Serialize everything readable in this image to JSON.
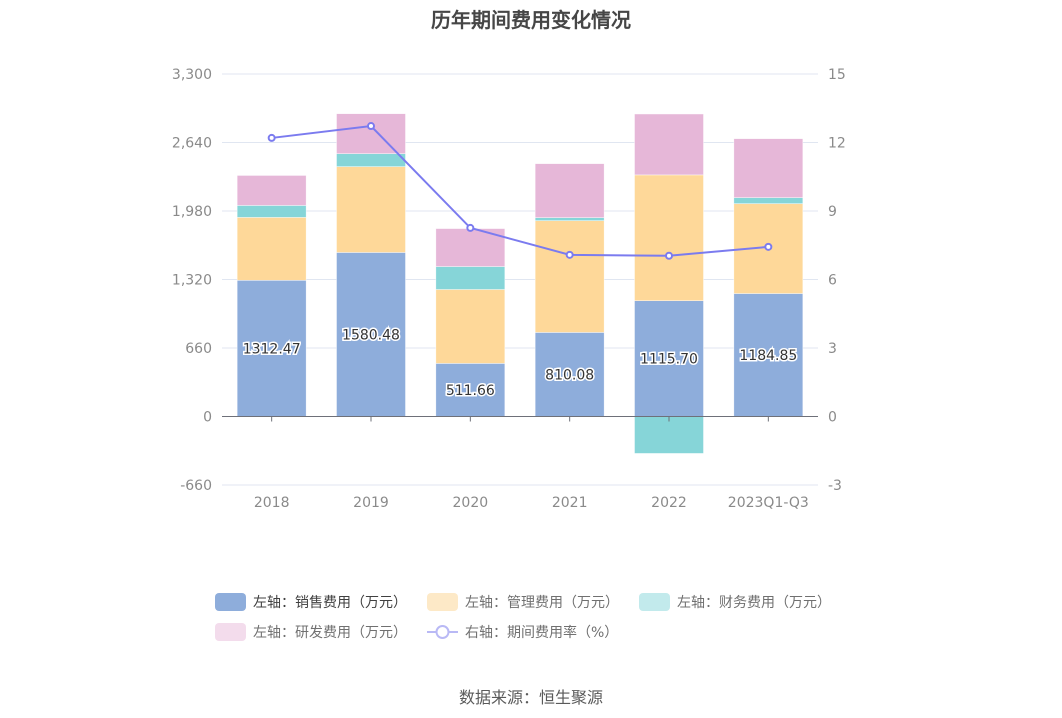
{
  "title": "历年期间费用变化情况",
  "source": "数据来源：恒生聚源",
  "colors": {
    "sales": "#8eaddb",
    "admin": "#fed899",
    "finance": "#86d5d8",
    "rnd": "#e6b7d8",
    "rate": "#7b7bef"
  },
  "legend": [
    {
      "label": "左轴：销售费用（万元）",
      "key": "sales",
      "kind": "bar",
      "active": true
    },
    {
      "label": "左轴：管理费用（万元）",
      "key": "admin",
      "kind": "bar",
      "active": false
    },
    {
      "label": "左轴：财务费用（万元）",
      "key": "finance",
      "kind": "bar",
      "active": false
    },
    {
      "label": "左轴：研发费用（万元）",
      "key": "rnd",
      "kind": "bar",
      "active": false
    },
    {
      "label": "右轴：期间费用率（%）",
      "key": "rate",
      "kind": "line",
      "active": false
    }
  ],
  "chart_data": {
    "type": "bar",
    "title": "历年期间费用变化情况",
    "categories": [
      "2018",
      "2019",
      "2020",
      "2021",
      "2022",
      "2023Q1-Q3"
    ],
    "left_axis": {
      "min": -660,
      "max": 3300,
      "ticks": [
        "-660",
        "0",
        "660",
        "1,320",
        "1,980",
        "2,640",
        "3,300"
      ],
      "tick_values": [
        -660,
        0,
        660,
        1320,
        1980,
        2640,
        3300
      ]
    },
    "right_axis": {
      "min": -3,
      "max": 15,
      "ticks": [
        "-3",
        "0",
        "3",
        "6",
        "9",
        "12",
        "15"
      ],
      "tick_values": [
        -3,
        0,
        3,
        6,
        9,
        12,
        15
      ]
    },
    "grid": true,
    "legend_position": "bottom",
    "series": [
      {
        "name": "左轴：销售费用（万元）",
        "key": "sales",
        "type": "bar",
        "stack": true,
        "axis": "left",
        "values": [
          1312.47,
          1580.48,
          511.66,
          810.08,
          1115.7,
          1184.85
        ],
        "labels": [
          "1312.47",
          "1580.48",
          "511.66",
          "810.08",
          "1115.70",
          "1184.85"
        ]
      },
      {
        "name": "左轴：管理费用（万元）",
        "key": "admin",
        "type": "bar",
        "stack": true,
        "axis": "left",
        "values": [
          606,
          827,
          712,
          1077,
          1212,
          866
        ]
      },
      {
        "name": "左轴：财务费用（万元）",
        "key": "finance",
        "type": "bar",
        "stack": true,
        "axis": "left",
        "values": [
          115,
          125,
          221,
          29,
          -356,
          58
        ]
      },
      {
        "name": "左轴：研发费用（万元）",
        "key": "rnd",
        "type": "bar",
        "stack": true,
        "axis": "left",
        "values": [
          289,
          385,
          366,
          520,
          587,
          568
        ]
      },
      {
        "name": "右轴：期间费用率（%）",
        "key": "rate",
        "type": "line",
        "axis": "right",
        "values": [
          12.2,
          12.72,
          8.26,
          7.08,
          7.04,
          7.43
        ]
      }
    ]
  }
}
